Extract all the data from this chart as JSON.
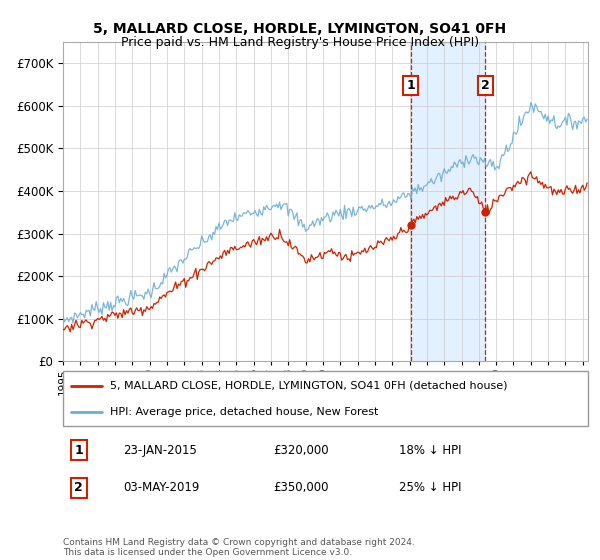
{
  "title": "5, MALLARD CLOSE, HORDLE, LYMINGTON, SO41 0FH",
  "subtitle": "Price paid vs. HM Land Registry's House Price Index (HPI)",
  "ylim": [
    0,
    750000
  ],
  "yticks": [
    0,
    100000,
    200000,
    300000,
    400000,
    500000,
    600000,
    700000
  ],
  "legend_line1": "5, MALLARD CLOSE, HORDLE, LYMINGTON, SO41 0FH (detached house)",
  "legend_line2": "HPI: Average price, detached house, New Forest",
  "annotation1_date": "23-JAN-2015",
  "annotation1_price": "£320,000",
  "annotation1_hpi": "18% ↓ HPI",
  "annotation2_date": "03-MAY-2019",
  "annotation2_price": "£350,000",
  "annotation2_hpi": "25% ↓ HPI",
  "footnote": "Contains HM Land Registry data © Crown copyright and database right 2024.\nThis data is licensed under the Open Government Licence v3.0.",
  "hpi_color": "#6baed6",
  "price_color": "#cc2200",
  "sale1_x": 2015.07,
  "sale1_y": 320000,
  "sale2_x": 2019.37,
  "sale2_y": 350000,
  "shade_x1": 2015.07,
  "shade_x2": 2019.37,
  "xlim_left": 1995.0,
  "xlim_right": 2025.3
}
